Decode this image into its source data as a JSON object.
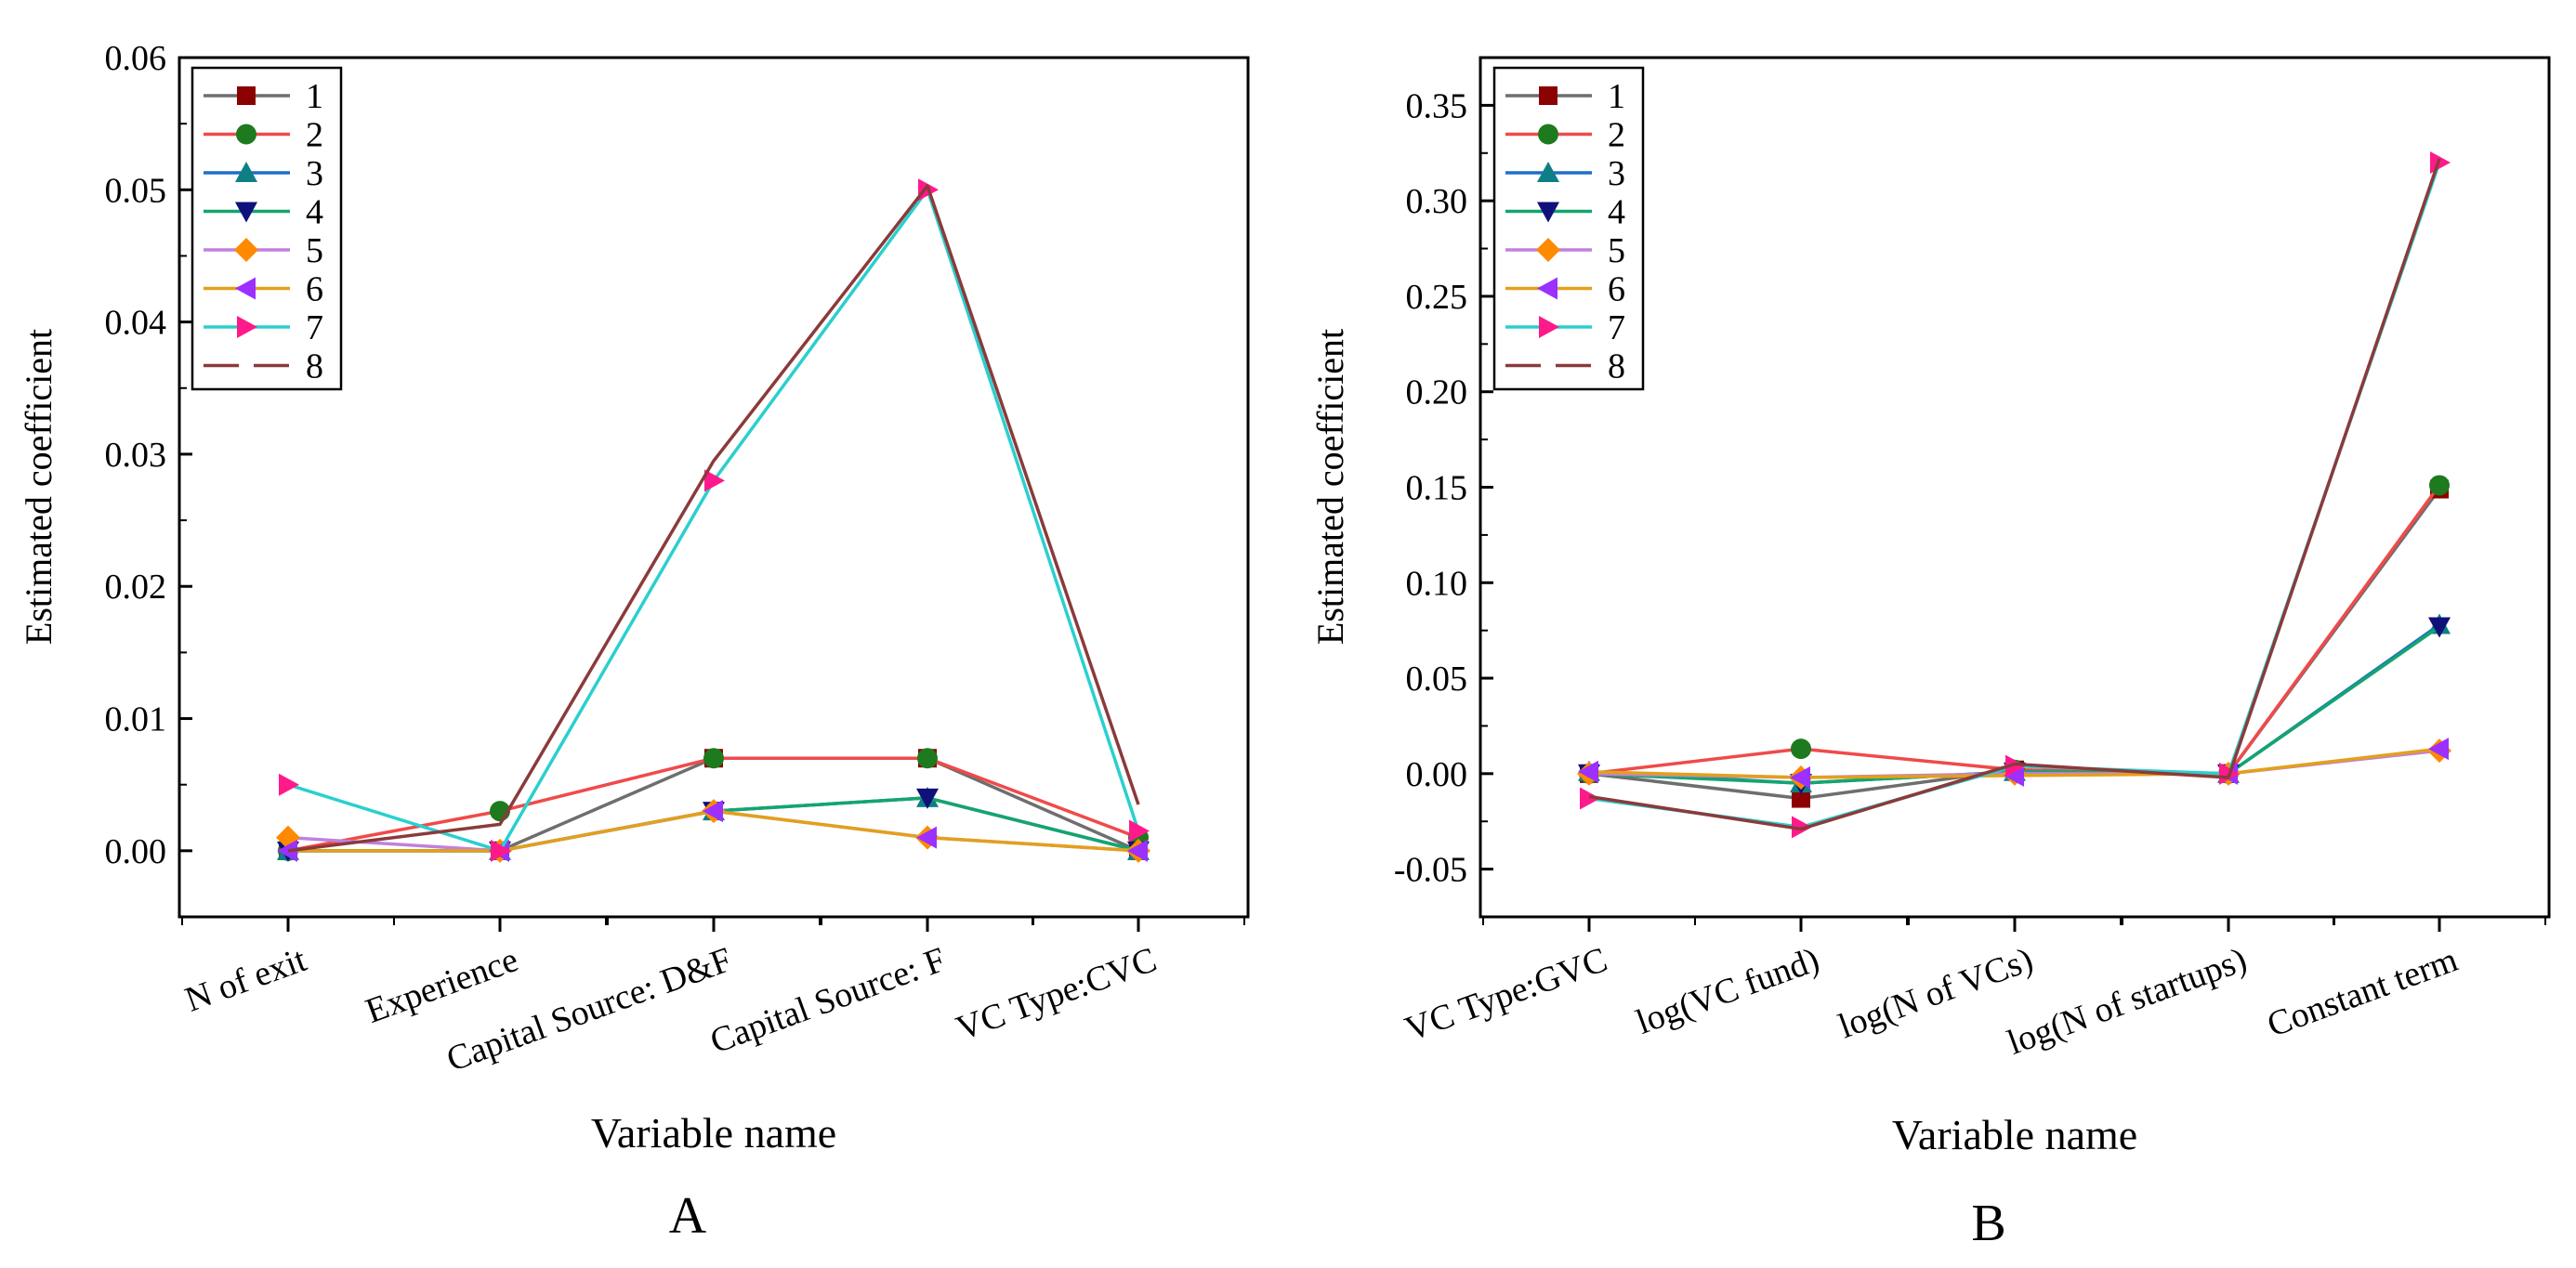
{
  "chart_data": [
    {
      "type": "line",
      "panel_label": "A",
      "xlabel": "Variable name",
      "ylabel": "Estimated coefficient",
      "categories": [
        "N of exit",
        "Experience",
        "Capital Source: D&F",
        "Capital Source: F",
        "VC Type:CVC"
      ],
      "ylim": [
        -0.005,
        0.06
      ],
      "yticks": [
        "0.00",
        "0.01",
        "0.02",
        "0.03",
        "0.04",
        "0.05",
        "0.06"
      ],
      "ytick_values": [
        0,
        0.01,
        0.02,
        0.03,
        0.04,
        0.05,
        0.06
      ],
      "legend_position": "top-left",
      "series": [
        {
          "name": "1",
          "color": "#6e6e6e",
          "marker": "square",
          "marker_color": "#8b0000",
          "values": [
            0.0,
            0.0,
            0.007,
            0.007,
            0.0
          ]
        },
        {
          "name": "2",
          "color": "#f04a4a",
          "marker": "circle",
          "marker_color": "#1e7a1e",
          "values": [
            0.0,
            0.003,
            0.007,
            0.007,
            0.001
          ]
        },
        {
          "name": "3",
          "color": "#1f6fc8",
          "marker": "triangle-up",
          "marker_color": "#0f7f86",
          "values": [
            0.0,
            0.0,
            0.003,
            0.004,
            0.0
          ]
        },
        {
          "name": "4",
          "color": "#14a56e",
          "marker": "triangle-down",
          "marker_color": "#10107a",
          "values": [
            0.0,
            0.0,
            0.003,
            0.004,
            0.0
          ]
        },
        {
          "name": "5",
          "color": "#c080e0",
          "marker": "diamond",
          "marker_color": "#ff8a00",
          "values": [
            0.001,
            0.0,
            0.003,
            0.001,
            0.0
          ]
        },
        {
          "name": "6",
          "color": "#e3a01b",
          "marker": "triangle-left",
          "marker_color": "#9b30ff",
          "values": [
            0.0,
            0.0,
            0.003,
            0.001,
            0.0
          ]
        },
        {
          "name": "7",
          "color": "#2bcfcf",
          "marker": "triangle-right",
          "marker_color": "#ff1a8c",
          "values": [
            0.005,
            0.0,
            0.028,
            0.05,
            0.0015
          ]
        },
        {
          "name": "8",
          "color": "#8b3a3a",
          "marker": "dash",
          "marker_color": "#8b3a3a",
          "values": [
            0.0,
            0.002,
            0.0295,
            0.0503,
            0.0035
          ]
        }
      ]
    },
    {
      "type": "line",
      "panel_label": "B",
      "xlabel": "Variable name",
      "ylabel": "Estimated coefficient",
      "categories": [
        "VC Type:GVC",
        "log(VC fund)",
        "log(N of VCs)",
        "log(N of startups)",
        "Constant term"
      ],
      "ylim": [
        -0.075,
        0.375
      ],
      "yticks": [
        "-0.05",
        "0.00",
        "0.05",
        "0.10",
        "0.15",
        "0.20",
        "0.25",
        "0.30",
        "0.35"
      ],
      "ytick_values": [
        -0.05,
        0,
        0.05,
        0.1,
        0.15,
        0.2,
        0.25,
        0.3,
        0.35
      ],
      "legend_position": "top-left",
      "series": [
        {
          "name": "1",
          "color": "#6e6e6e",
          "marker": "square",
          "marker_color": "#8b0000",
          "values": [
            0.0,
            -0.013,
            0.002,
            0.0,
            0.149
          ]
        },
        {
          "name": "2",
          "color": "#f04a4a",
          "marker": "circle",
          "marker_color": "#1e7a1e",
          "values": [
            0.0,
            0.013,
            0.002,
            0.0,
            0.151
          ]
        },
        {
          "name": "3",
          "color": "#1f6fc8",
          "marker": "triangle-up",
          "marker_color": "#0f7f86",
          "values": [
            0.001,
            -0.005,
            0.001,
            0.0,
            0.078
          ]
        },
        {
          "name": "4",
          "color": "#14a56e",
          "marker": "triangle-down",
          "marker_color": "#10107a",
          "values": [
            0.0,
            -0.005,
            0.001,
            0.0,
            0.077
          ]
        },
        {
          "name": "5",
          "color": "#c080e0",
          "marker": "diamond",
          "marker_color": "#ff8a00",
          "values": [
            0.0,
            -0.002,
            0.0,
            0.0,
            0.012
          ]
        },
        {
          "name": "6",
          "color": "#e3a01b",
          "marker": "triangle-left",
          "marker_color": "#9b30ff",
          "values": [
            0.001,
            -0.002,
            -0.001,
            0.0,
            0.013
          ]
        },
        {
          "name": "7",
          "color": "#2bcfcf",
          "marker": "triangle-right",
          "marker_color": "#ff1a8c",
          "values": [
            -0.013,
            -0.028,
            0.004,
            0.0,
            0.32
          ]
        },
        {
          "name": "8",
          "color": "#8b3a3a",
          "marker": "dash",
          "marker_color": "#8b3a3a",
          "values": [
            -0.012,
            -0.029,
            0.005,
            -0.002,
            0.322
          ]
        }
      ]
    }
  ]
}
